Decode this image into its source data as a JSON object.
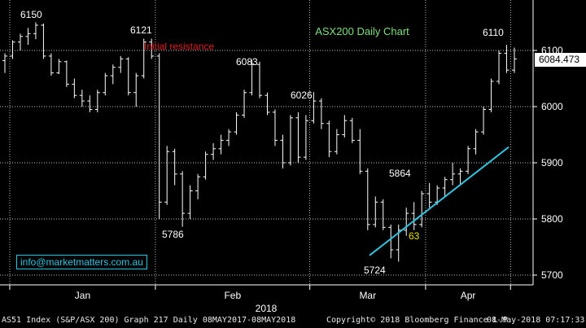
{
  "chart_data": {
    "type": "ohlc",
    "title": "ASX200 Daily Chart",
    "ylim": [
      5680,
      6160
    ],
    "y_ticks": [
      5700,
      5800,
      5900,
      6000,
      6100
    ],
    "x_month_labels": [
      "Jan",
      "Feb",
      "Mar",
      "Apr"
    ],
    "x_year_label": "2018",
    "last_price": "6084.473",
    "annotations": [
      {
        "text": "6150",
        "value": 6150,
        "color": "#ffffff"
      },
      {
        "text": "6121",
        "value": 6121,
        "color": "#ffffff"
      },
      {
        "text": "6083",
        "value": 6083,
        "color": "#ffffff"
      },
      {
        "text": "6026",
        "value": 6026,
        "color": "#ffffff"
      },
      {
        "text": "5786",
        "value": 5786,
        "color": "#ffffff"
      },
      {
        "text": "5864",
        "value": 5864,
        "color": "#ffffff"
      },
      {
        "text": "5724",
        "value": 5724,
        "color": "#ffffff"
      },
      {
        "text": "6110",
        "value": 6110,
        "color": "#ffffff"
      },
      {
        "text": "63",
        "value": null,
        "color": "#e8e000"
      },
      {
        "text": "Initial resistance",
        "value": 6100,
        "color": "#e02020"
      }
    ],
    "trendline": {
      "from": [
        "Mar",
        5735
      ],
      "to": [
        "May",
        5928
      ],
      "color": "#2fc4e0"
    },
    "colors": {
      "background": "#000000",
      "bars": "#ffffff",
      "grid": "#ffffff",
      "title": "#7be07b",
      "resistance": "#e02020",
      "trend": "#2fc4e0"
    },
    "bars": [
      [
        6082,
        6095,
        6060,
        6090
      ],
      [
        6090,
        6118,
        6085,
        6115
      ],
      [
        6115,
        6130,
        6100,
        6125
      ],
      [
        6125,
        6140,
        6110,
        6130
      ],
      [
        6130,
        6150,
        6120,
        6145
      ],
      [
        6145,
        6148,
        6085,
        6090
      ],
      [
        6090,
        6095,
        6055,
        6060
      ],
      [
        6060,
        6085,
        6058,
        6080
      ],
      [
        6080,
        6082,
        6035,
        6040
      ],
      [
        6040,
        6050,
        6015,
        6020
      ],
      [
        6020,
        6030,
        6000,
        6010
      ],
      [
        6010,
        6020,
        5990,
        5995
      ],
      [
        5995,
        6030,
        5990,
        6025
      ],
      [
        6025,
        6060,
        6020,
        6055
      ],
      [
        6055,
        6075,
        6040,
        6070
      ],
      [
        6070,
        6090,
        6060,
        6085
      ],
      [
        6085,
        6088,
        6020,
        6025
      ],
      [
        6025,
        6060,
        6000,
        6055
      ],
      [
        6055,
        6121,
        6050,
        6115
      ],
      [
        6115,
        6121,
        6085,
        6090
      ],
      [
        6090,
        6095,
        5800,
        5830
      ],
      [
        5830,
        5930,
        5825,
        5920
      ],
      [
        5920,
        5925,
        5860,
        5880
      ],
      [
        5880,
        5885,
        5786,
        5810
      ],
      [
        5810,
        5860,
        5800,
        5850
      ],
      [
        5850,
        5880,
        5835,
        5875
      ],
      [
        5875,
        5920,
        5870,
        5915
      ],
      [
        5915,
        5935,
        5905,
        5925
      ],
      [
        5925,
        5950,
        5915,
        5940
      ],
      [
        5940,
        5960,
        5930,
        5955
      ],
      [
        5955,
        5990,
        5950,
        5985
      ],
      [
        5985,
        6030,
        5980,
        6025
      ],
      [
        6025,
        6083,
        6020,
        6075
      ],
      [
        6075,
        6080,
        6015,
        6020
      ],
      [
        6020,
        6025,
        5985,
        5990
      ],
      [
        5990,
        5995,
        5930,
        5940
      ],
      [
        5940,
        5950,
        5890,
        5900
      ],
      [
        5900,
        5985,
        5895,
        5980
      ],
      [
        5980,
        5990,
        5900,
        5910
      ],
      [
        5910,
        5985,
        5905,
        5975
      ],
      [
        5975,
        6026,
        5970,
        6010
      ],
      [
        6010,
        6015,
        5960,
        5970
      ],
      [
        5970,
        5975,
        5910,
        5920
      ],
      [
        5920,
        5960,
        5915,
        5950
      ],
      [
        5950,
        5985,
        5945,
        5975
      ],
      [
        5975,
        5980,
        5935,
        5940
      ],
      [
        5940,
        5960,
        5880,
        5885
      ],
      [
        5885,
        5890,
        5780,
        5790
      ],
      [
        5790,
        5840,
        5785,
        5830
      ],
      [
        5830,
        5835,
        5780,
        5785
      ],
      [
        5785,
        5790,
        5730,
        5745
      ],
      [
        5745,
        5790,
        5724,
        5780
      ],
      [
        5780,
        5820,
        5770,
        5810
      ],
      [
        5810,
        5830,
        5780,
        5790
      ],
      [
        5790,
        5850,
        5785,
        5845
      ],
      [
        5845,
        5864,
        5820,
        5830
      ],
      [
        5830,
        5860,
        5825,
        5855
      ],
      [
        5855,
        5875,
        5840,
        5870
      ],
      [
        5870,
        5900,
        5860,
        5880
      ],
      [
        5880,
        5890,
        5860,
        5885
      ],
      [
        5885,
        5930,
        5880,
        5925
      ],
      [
        5925,
        5960,
        5915,
        5955
      ],
      [
        5955,
        6000,
        5950,
        5995
      ],
      [
        5995,
        6050,
        5990,
        6045
      ],
      [
        6045,
        6100,
        6040,
        6095
      ],
      [
        6095,
        6110,
        6060,
        6065
      ],
      [
        6065,
        6105,
        6060,
        6085
      ]
    ],
    "month_start_index": {
      "Feb": 20,
      "Mar": 40,
      "Apr": 55,
      "May": 66
    }
  },
  "footer": {
    "left": "AS51 Index (S&P/ASX 200) Graph 217  Daily 08MAY2017-08MAY2018",
    "middle": "Copyright© 2018 Bloomberg Finance L.P.",
    "right": "08-May-2018 07:17:33"
  },
  "watermark": "info@marketmatters.com.au"
}
